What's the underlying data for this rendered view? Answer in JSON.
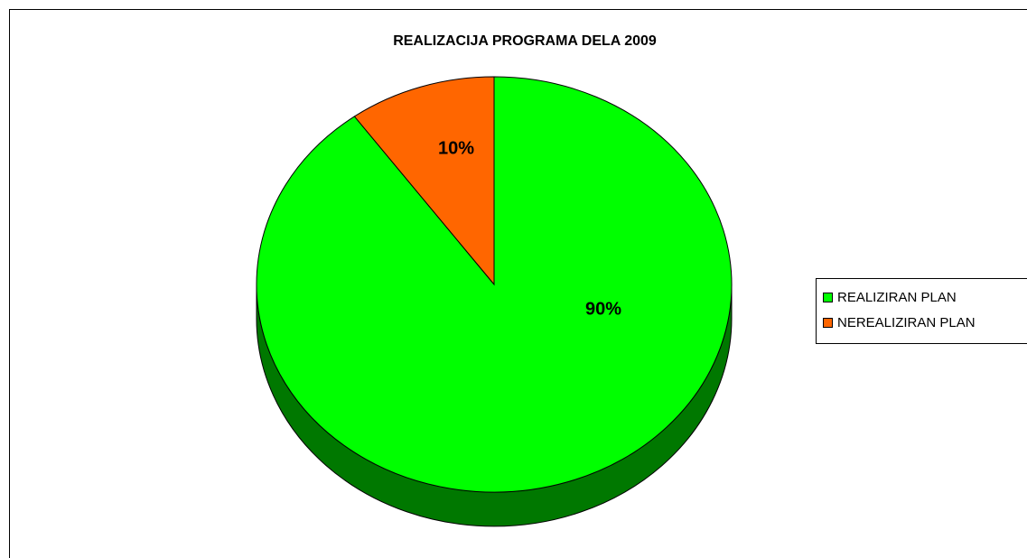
{
  "chart_data": {
    "type": "pie",
    "title": "REALIZACIJA PROGRAMA DELA 2009",
    "categories": [
      "REALIZIRAN PLAN",
      "NEREALIZIRAN PLAN"
    ],
    "values": [
      90,
      10
    ],
    "value_labels": [
      "90%",
      "10%"
    ],
    "colors": [
      "#00ff00",
      "#ff6600"
    ],
    "legend": "right"
  }
}
